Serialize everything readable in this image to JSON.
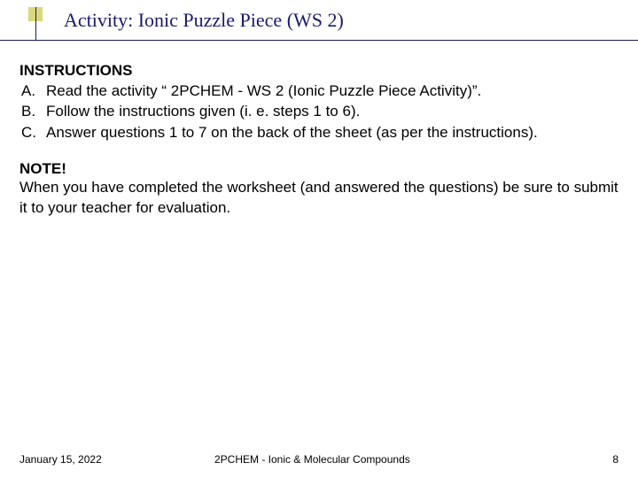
{
  "colors": {
    "accent_line": "#1a1a6a",
    "marker": "#d9d97a",
    "background": "#ffffff",
    "text": "#000000",
    "title_text": "#1a1a6a"
  },
  "title": "Activity: Ionic Puzzle Piece (WS 2)",
  "instructions": {
    "heading": "INSTRUCTIONS",
    "items": [
      {
        "label": "A.",
        "text": "Read the activity “ 2PCHEM - WS 2 (Ionic Puzzle Piece Activity)”."
      },
      {
        "label": "B.",
        "text": "Follow the instructions given (i. e. steps 1 to 6)."
      },
      {
        "label": "C.",
        "text": "Answer questions 1 to 7 on the back of the sheet (as per the instructions)."
      }
    ]
  },
  "note": {
    "heading": "NOTE!",
    "body": "When you have completed the worksheet (and answered the questions) be sure to submit it to your teacher for evaluation."
  },
  "footer": {
    "date": "January 15, 2022",
    "center": "2PCHEM - Ionic & Molecular Compounds",
    "page": "8"
  }
}
